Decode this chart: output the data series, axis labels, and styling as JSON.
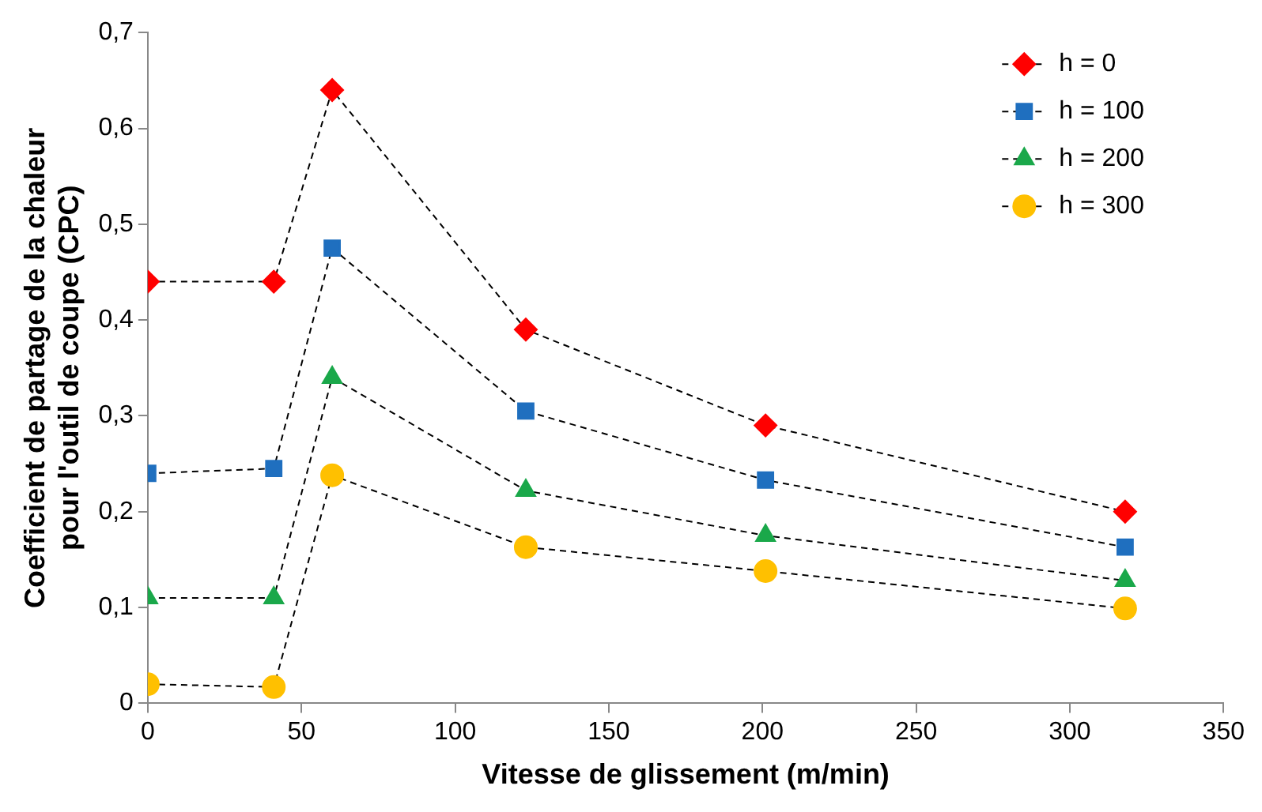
{
  "chart_data": {
    "type": "line",
    "xlabel": "Vitesse de glissement (m/min)",
    "ylabel": "Coefficient de partage de la chaleur\npour l'outil de coupe (CPC)",
    "x": [
      0,
      41,
      60,
      123,
      201,
      318
    ],
    "series": [
      {
        "name": "h = 0",
        "color": "#ff0000",
        "marker": "diamond",
        "values": [
          0.44,
          0.44,
          0.64,
          0.39,
          0.29,
          0.2
        ]
      },
      {
        "name": "h = 100",
        "color": "#1f6fbf",
        "marker": "square",
        "values": [
          0.24,
          0.245,
          0.475,
          0.305,
          0.233,
          0.163
        ]
      },
      {
        "name": "h = 200",
        "color": "#1aa84a",
        "marker": "triangle",
        "values": [
          0.11,
          0.11,
          0.34,
          0.222,
          0.175,
          0.128
        ]
      },
      {
        "name": "h = 300",
        "color": "#ffc000",
        "marker": "circle",
        "values": [
          0.02,
          0.017,
          0.238,
          0.163,
          0.138,
          0.099
        ]
      }
    ],
    "xlim": [
      0,
      350
    ],
    "xticks": [
      0,
      50,
      100,
      150,
      200,
      250,
      300,
      350
    ],
    "ylim": [
      0,
      0.7
    ],
    "yticks": [
      0,
      {
        "value": 0.1,
        "label": "0,1"
      },
      {
        "value": 0.2,
        "label": "0,2"
      },
      {
        "value": 0.3,
        "label": "0,3"
      },
      {
        "value": 0.4,
        "label": "0,4"
      },
      {
        "value": 0.5,
        "label": "0,5"
      },
      {
        "value": 0.6,
        "label": "0,6"
      },
      {
        "value": 0.7,
        "label": "0,7"
      }
    ],
    "grid": false,
    "legend": "top right",
    "line_style": "dashed"
  }
}
